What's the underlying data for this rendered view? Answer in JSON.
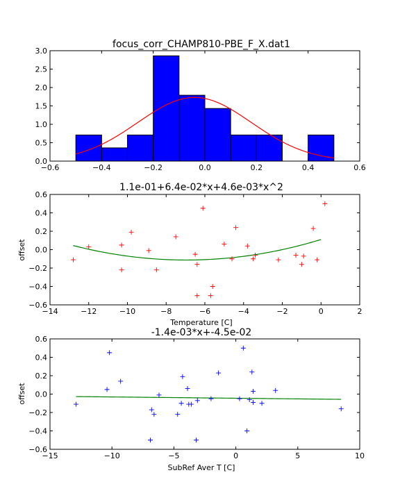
{
  "chart_data": [
    {
      "type": "bar",
      "title": "focus_corr_CHAMP810-PBE_F_X.dat1",
      "xlabel": "",
      "ylabel": "",
      "xlim": [
        -0.6,
        0.6
      ],
      "ylim": [
        0,
        3.0
      ],
      "xticks": [
        -0.6,
        -0.4,
        -0.2,
        0.0,
        0.2,
        0.4,
        0.6
      ],
      "xtick_labels": [
        "−0.6",
        "−0.4",
        "−0.2",
        "0.0",
        "0.2",
        "0.4",
        "0.6"
      ],
      "yticks": [
        0,
        0.5,
        1.0,
        1.5,
        2.0,
        2.5,
        3.0
      ],
      "ytick_labels": [
        "0.0",
        "0.5",
        "1.0",
        "1.5",
        "2.0",
        "2.5",
        "3.0"
      ],
      "bin_edges": [
        -0.5,
        -0.4,
        -0.3,
        -0.2,
        -0.1,
        0.0,
        0.1,
        0.2,
        0.3,
        0.4,
        0.5
      ],
      "values": [
        0.71,
        0.36,
        0.71,
        2.86,
        1.79,
        1.43,
        0.71,
        0.71,
        0.0,
        0.71
      ],
      "bar_color": "#0000ff",
      "fit_curve": {
        "mean": -0.04,
        "std": 0.22,
        "peak": 1.73,
        "color": "#ff0000"
      },
      "grid": false
    },
    {
      "type": "scatter",
      "title": "1.1e-01+6.4e-02*x+4.6e-03*x^2",
      "xlabel": "Temperature [C]",
      "ylabel": "offset",
      "xlim": [
        -14,
        2
      ],
      "ylim": [
        -0.6,
        0.6
      ],
      "xticks": [
        -14,
        -12,
        -10,
        -8,
        -6,
        -4,
        -2,
        0,
        2
      ],
      "xtick_labels": [
        "−14",
        "−12",
        "−10",
        "−8",
        "−6",
        "−4",
        "−2",
        "0",
        "2"
      ],
      "yticks": [
        -0.6,
        -0.4,
        -0.2,
        0.0,
        0.2,
        0.4,
        0.6
      ],
      "ytick_labels": [
        "−0.6",
        "−0.4",
        "−0.2",
        "0.0",
        "0.2",
        "0.4",
        "0.6"
      ],
      "marker": "+",
      "marker_color": "#ff0000",
      "points": [
        [
          -12.8,
          -0.11
        ],
        [
          -12.0,
          0.03
        ],
        [
          -10.3,
          0.05
        ],
        [
          -10.3,
          -0.22
        ],
        [
          -9.8,
          0.19
        ],
        [
          -8.9,
          -0.01
        ],
        [
          -8.5,
          -0.22
        ],
        [
          -7.5,
          0.14
        ],
        [
          -6.5,
          -0.05
        ],
        [
          -6.4,
          -0.16
        ],
        [
          -6.4,
          -0.5
        ],
        [
          -6.1,
          0.45
        ],
        [
          -5.7,
          -0.5
        ],
        [
          -5.6,
          -0.4
        ],
        [
          -5.0,
          0.06
        ],
        [
          -4.6,
          -0.1
        ],
        [
          -4.4,
          0.24
        ],
        [
          -3.8,
          0.04
        ],
        [
          -3.5,
          -0.1
        ],
        [
          -3.4,
          -0.06
        ],
        [
          -2.2,
          -0.11
        ],
        [
          -1.3,
          -0.06
        ],
        [
          -1.0,
          -0.16
        ],
        [
          -0.9,
          -0.07
        ],
        [
          -0.4,
          0.23
        ],
        [
          -0.2,
          -0.11
        ],
        [
          0.2,
          0.5
        ]
      ],
      "fit": {
        "coefficients": [
          0.11,
          0.064,
          0.0046
        ],
        "x_range": [
          -12.8,
          0.0
        ],
        "color": "#008000"
      },
      "grid": false
    },
    {
      "type": "scatter",
      "title": "-1.4e-03*x+-4.5e-02",
      "xlabel": "SubRef Aver T [C]",
      "ylabel": "offset",
      "xlim": [
        -15,
        10
      ],
      "ylim": [
        -0.6,
        0.6
      ],
      "xticks": [
        -15,
        -10,
        -5,
        0,
        5,
        10
      ],
      "xtick_labels": [
        "−15",
        "−10",
        "−5",
        "0",
        "5",
        "10"
      ],
      "yticks": [
        -0.6,
        -0.4,
        -0.2,
        0.0,
        0.2,
        0.4,
        0.6
      ],
      "ytick_labels": [
        "−0.6",
        "−0.4",
        "−0.2",
        "0.0",
        "0.2",
        "0.4",
        "0.6"
      ],
      "marker": "+",
      "marker_color": "#0000ff",
      "points": [
        [
          -12.9,
          -0.11
        ],
        [
          -10.4,
          0.05
        ],
        [
          -10.2,
          0.45
        ],
        [
          -9.3,
          0.14
        ],
        [
          -6.9,
          -0.5
        ],
        [
          -6.8,
          -0.17
        ],
        [
          -6.6,
          -0.22
        ],
        [
          -6.2,
          -0.01
        ],
        [
          -4.7,
          -0.22
        ],
        [
          -4.4,
          -0.1
        ],
        [
          -4.3,
          0.19
        ],
        [
          -3.9,
          0.06
        ],
        [
          -3.8,
          -0.11
        ],
        [
          -3.6,
          -0.11
        ],
        [
          -3.2,
          -0.5
        ],
        [
          -3.1,
          -0.07
        ],
        [
          -2.0,
          -0.05
        ],
        [
          -1.4,
          0.23
        ],
        [
          0.3,
          -0.05
        ],
        [
          0.6,
          0.5
        ],
        [
          0.9,
          -0.4
        ],
        [
          1.1,
          -0.06
        ],
        [
          1.3,
          0.24
        ],
        [
          1.4,
          0.03
        ],
        [
          1.4,
          -0.09
        ],
        [
          2.1,
          -0.1
        ],
        [
          3.2,
          0.04
        ],
        [
          8.5,
          -0.16
        ]
      ],
      "fit": {
        "coefficients": [
          -0.045,
          -0.0014
        ],
        "x_range": [
          -12.9,
          8.5
        ],
        "color": "#008000"
      },
      "grid": false
    }
  ]
}
